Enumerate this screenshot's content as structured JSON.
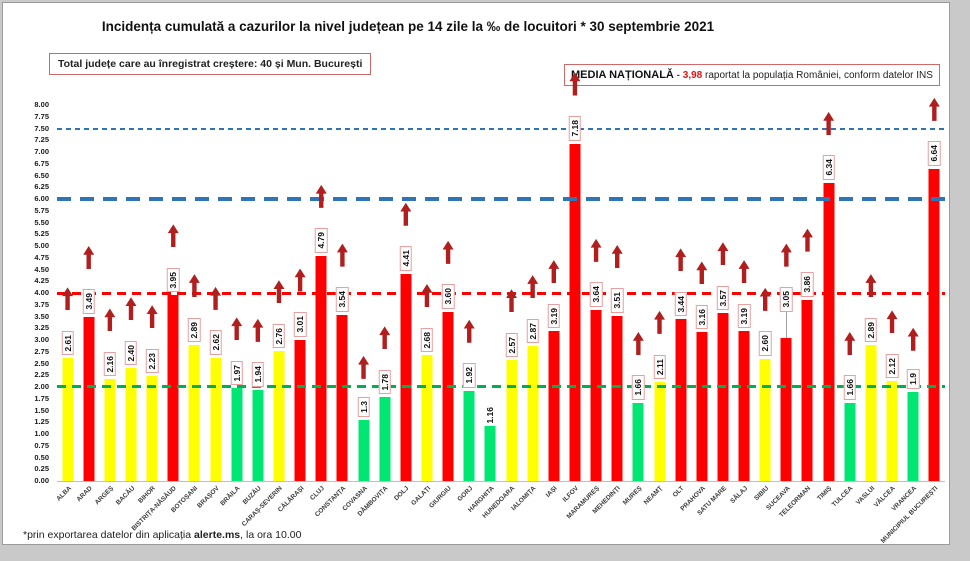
{
  "title": "Incidența cumulată a cazurilor la nivel județean pe 14 zile la ‰ de locuitori * 30 septembrie 2021",
  "total_box": "Total județe care au înregistrat creștere:  40 și Mun. București",
  "media_box": {
    "label": "MEDIA NAȚIONALĂ",
    "dash": " - ",
    "value": "3,98",
    "rest": " raportat la populația României, conform datelor INS"
  },
  "footnote": {
    "prefix": "*prin exportarea datelor din aplicația ",
    "bold": "alerte.ms",
    "suffix": ", la ora 10.00"
  },
  "chart_data": {
    "type": "bar",
    "title": "Incidența cumulată a cazurilor la nivel județean pe 14 zile la ‰ de locuitori * 30 septembrie 2021",
    "ylim": [
      0,
      8
    ],
    "ytick_step": 0.25,
    "grid": false,
    "legend": false,
    "national_average": 3.98,
    "reference_lines": [
      {
        "value": 7.5,
        "color": "#2E75B6",
        "style": "thin",
        "dash": "5 4"
      },
      {
        "value": 6.0,
        "color": "#2E75B6",
        "style": "thick",
        "dash": "14 9"
      },
      {
        "value": 3.98,
        "color": "#FF0000",
        "style": "med",
        "dash": "9 6"
      },
      {
        "value": 2.0,
        "color": "#00B050",
        "style": "med",
        "dash": "9 6"
      }
    ],
    "colors": {
      "red": "#FF0000",
      "yellow": "#FFFF00",
      "green": "#00E673",
      "arrow": "#B01E1E"
    },
    "bars": [
      {
        "name": "ALBA",
        "value": 2.61,
        "label": "2.61",
        "color": "yellow",
        "arrow": true,
        "boxed": true,
        "leader": false
      },
      {
        "name": "ARAD",
        "value": 3.49,
        "label": "3.49",
        "color": "red",
        "arrow": true,
        "boxed": true,
        "leader": false
      },
      {
        "name": "ARGEȘ",
        "value": 2.16,
        "label": "2.16",
        "color": "yellow",
        "arrow": true,
        "boxed": true,
        "leader": false
      },
      {
        "name": "BACĂU",
        "value": 2.4,
        "label": "2.40",
        "color": "yellow",
        "arrow": true,
        "boxed": true,
        "leader": false
      },
      {
        "name": "BIHOR",
        "value": 2.23,
        "label": "2.23",
        "color": "yellow",
        "arrow": true,
        "boxed": true,
        "leader": false
      },
      {
        "name": "BISTRIȚA-NĂSĂUD",
        "value": 3.95,
        "label": "3.95",
        "color": "red",
        "arrow": true,
        "boxed": true,
        "leader": false
      },
      {
        "name": "BOTOȘANI",
        "value": 2.89,
        "label": "2.89",
        "color": "yellow",
        "arrow": true,
        "boxed": true,
        "leader": false
      },
      {
        "name": "BRAȘOV",
        "value": 2.62,
        "label": "2.62",
        "color": "yellow",
        "arrow": true,
        "boxed": true,
        "leader": false
      },
      {
        "name": "BRĂILA",
        "value": 1.97,
        "label": "1.97",
        "color": "green",
        "arrow": true,
        "boxed": true,
        "leader": false
      },
      {
        "name": "BUZĂU",
        "value": 1.94,
        "label": "1.94",
        "color": "green",
        "arrow": true,
        "boxed": true,
        "leader": false
      },
      {
        "name": "CARAȘ-SEVERIN",
        "value": 2.76,
        "label": "2.76",
        "color": "yellow",
        "arrow": true,
        "boxed": true,
        "leader": false
      },
      {
        "name": "CĂLĂRAȘI",
        "value": 3.01,
        "label": "3.01",
        "color": "red",
        "arrow": true,
        "boxed": true,
        "leader": false
      },
      {
        "name": "CLUJ",
        "value": 4.79,
        "label": "4.79",
        "color": "red",
        "arrow": true,
        "boxed": true,
        "leader": false
      },
      {
        "name": "CONSTANȚA",
        "value": 3.54,
        "label": "3.54",
        "color": "red",
        "arrow": true,
        "boxed": true,
        "leader": false
      },
      {
        "name": "COVASNA",
        "value": 1.3,
        "label": "1.3",
        "color": "green",
        "arrow": true,
        "boxed": true,
        "leader": false
      },
      {
        "name": "DÂMBOVIȚA",
        "value": 1.78,
        "label": "1.78",
        "color": "green",
        "arrow": true,
        "boxed": true,
        "leader": false
      },
      {
        "name": "DOLJ",
        "value": 4.41,
        "label": "4.41",
        "color": "red",
        "arrow": true,
        "boxed": true,
        "leader": false
      },
      {
        "name": "GALAȚI",
        "value": 2.68,
        "label": "2.68",
        "color": "yellow",
        "arrow": true,
        "boxed": true,
        "leader": false
      },
      {
        "name": "GIURGIU",
        "value": 3.6,
        "label": "3.60",
        "color": "red",
        "arrow": true,
        "boxed": true,
        "leader": false
      },
      {
        "name": "GORJ",
        "value": 1.92,
        "label": "1.92",
        "color": "green",
        "arrow": true,
        "boxed": true,
        "leader": false
      },
      {
        "name": "HARGHITA",
        "value": 1.16,
        "label": "1.16",
        "color": "green",
        "arrow": false,
        "boxed": false,
        "leader": false
      },
      {
        "name": "HUNEDOARA",
        "value": 2.57,
        "label": "2.57",
        "color": "yellow",
        "arrow": true,
        "boxed": true,
        "leader": false
      },
      {
        "name": "IALOMIȚA",
        "value": 2.87,
        "label": "2.87",
        "color": "yellow",
        "arrow": true,
        "boxed": true,
        "leader": false
      },
      {
        "name": "IAȘI",
        "value": 3.19,
        "label": "3.19",
        "color": "red",
        "arrow": true,
        "boxed": true,
        "leader": false
      },
      {
        "name": "ILFOV",
        "value": 7.18,
        "label": "7.18",
        "color": "red",
        "arrow": true,
        "boxed": true,
        "leader": false
      },
      {
        "name": "MARAMUREȘ",
        "value": 3.64,
        "label": "3.64",
        "color": "red",
        "arrow": true,
        "boxed": true,
        "leader": false
      },
      {
        "name": "MEHEDINȚI",
        "value": 3.51,
        "label": "3.51",
        "color": "red",
        "arrow": true,
        "boxed": true,
        "leader": false
      },
      {
        "name": "MUREȘ",
        "value": 1.66,
        "label": "1.66",
        "color": "green",
        "arrow": true,
        "boxed": true,
        "leader": false
      },
      {
        "name": "NEAMȚ",
        "value": 2.11,
        "label": "2.11",
        "color": "yellow",
        "arrow": true,
        "boxed": true,
        "leader": false
      },
      {
        "name": "OLT",
        "value": 3.44,
        "label": "3.44",
        "color": "red",
        "arrow": true,
        "boxed": true,
        "leader": false
      },
      {
        "name": "PRAHOVA",
        "value": 3.16,
        "label": "3.16",
        "color": "red",
        "arrow": true,
        "boxed": true,
        "leader": false
      },
      {
        "name": "SATU MARE",
        "value": 3.57,
        "label": "3.57",
        "color": "red",
        "arrow": true,
        "boxed": true,
        "leader": false
      },
      {
        "name": "SĂLAJ",
        "value": 3.19,
        "label": "3.19",
        "color": "red",
        "arrow": true,
        "boxed": true,
        "leader": false
      },
      {
        "name": "SIBIU",
        "value": 2.6,
        "label": "2.60",
        "color": "yellow",
        "arrow": true,
        "boxed": true,
        "leader": false
      },
      {
        "name": "SUCEAVA",
        "value": 3.05,
        "label": "3.05",
        "color": "red",
        "arrow": true,
        "boxed": true,
        "leader": true
      },
      {
        "name": "TELEORMAN",
        "value": 3.86,
        "label": "3.86",
        "color": "red",
        "arrow": true,
        "boxed": true,
        "leader": false
      },
      {
        "name": "TIMIȘ",
        "value": 6.34,
        "label": "6.34",
        "color": "red",
        "arrow": true,
        "boxed": true,
        "leader": false
      },
      {
        "name": "TULCEA",
        "value": 1.66,
        "label": "1.66",
        "color": "green",
        "arrow": true,
        "boxed": true,
        "leader": false
      },
      {
        "name": "VASLUI",
        "value": 2.89,
        "label": "2.89",
        "color": "yellow",
        "arrow": true,
        "boxed": true,
        "leader": false
      },
      {
        "name": "VÂLCEA",
        "value": 2.12,
        "label": "2.12",
        "color": "yellow",
        "arrow": true,
        "boxed": true,
        "leader": false
      },
      {
        "name": "VRANCEA",
        "value": 1.9,
        "label": "1.9",
        "color": "green",
        "arrow": true,
        "boxed": true,
        "leader": false
      },
      {
        "name": "MUNICIPIUL BUCUREȘTI",
        "value": 6.64,
        "label": "6.64",
        "color": "red",
        "arrow": true,
        "boxed": true,
        "leader": false
      }
    ]
  }
}
